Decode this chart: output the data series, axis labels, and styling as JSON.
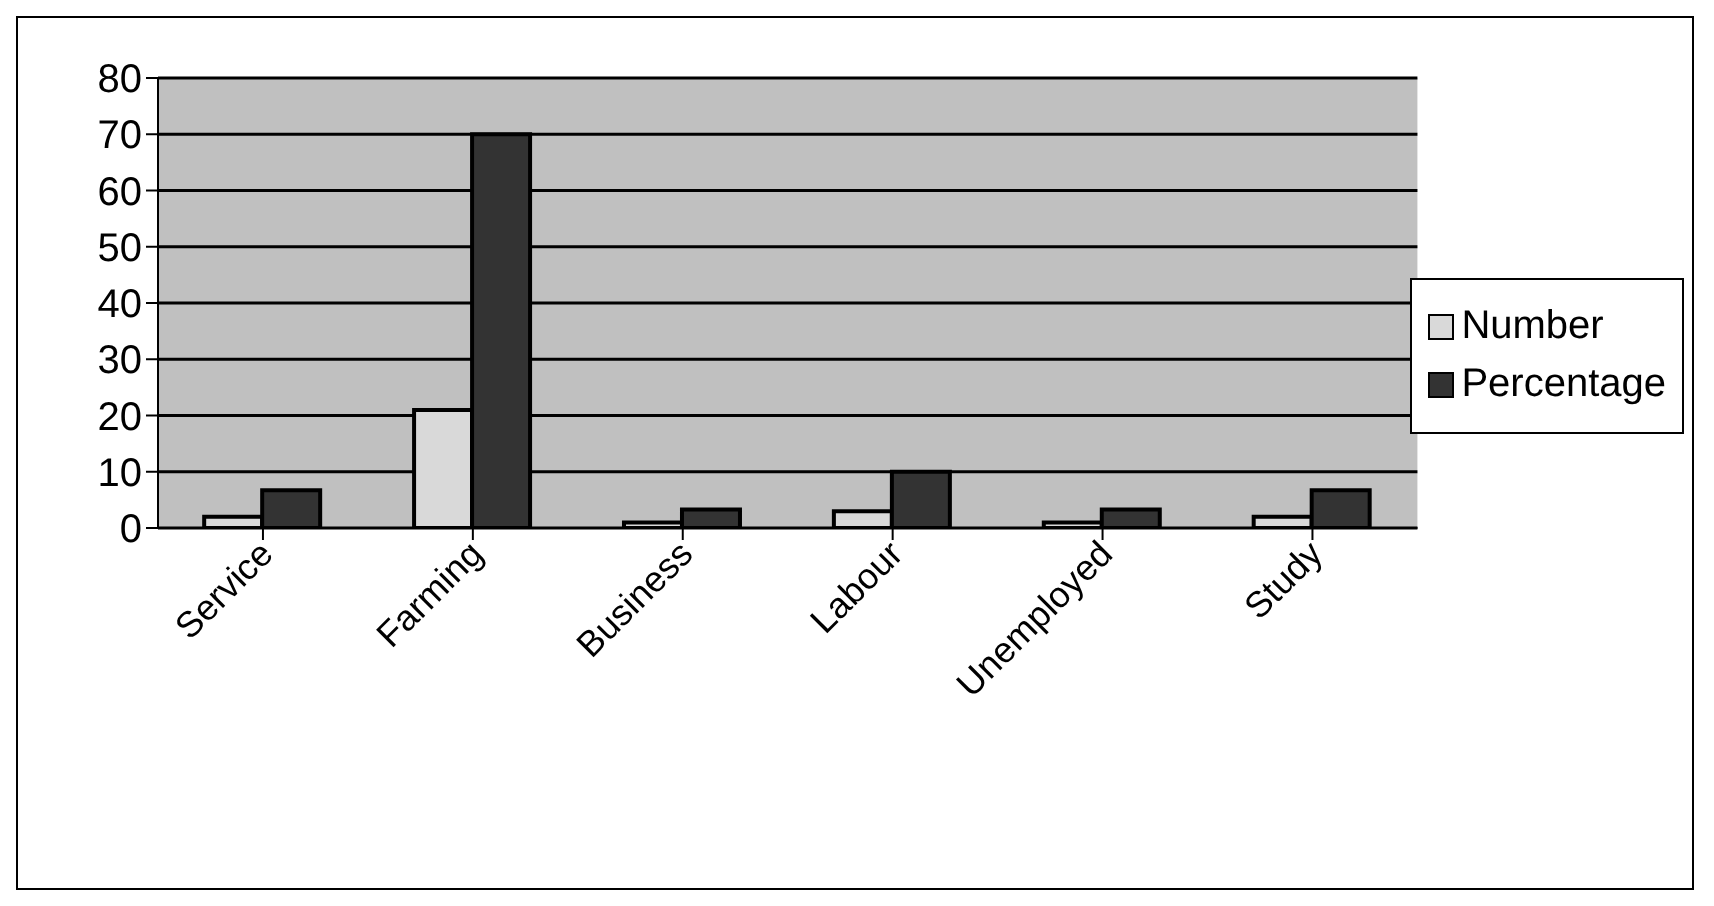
{
  "chart_data": {
    "type": "bar",
    "categories": [
      "Service",
      "Farming",
      "Business",
      "Labour",
      "Unemployed",
      "Study"
    ],
    "series": [
      {
        "name": "Number",
        "color": "#d9d9d9",
        "values": [
          2,
          21,
          1,
          3,
          1,
          2
        ]
      },
      {
        "name": "Percentage",
        "color": "#333333",
        "values": [
          6.7,
          70,
          3.3,
          10,
          3.3,
          6.7
        ]
      }
    ],
    "ylim": [
      0,
      80
    ],
    "yticks": [
      0,
      10,
      20,
      30,
      40,
      50,
      60,
      70,
      80
    ],
    "grid": "y",
    "legend": "right"
  }
}
